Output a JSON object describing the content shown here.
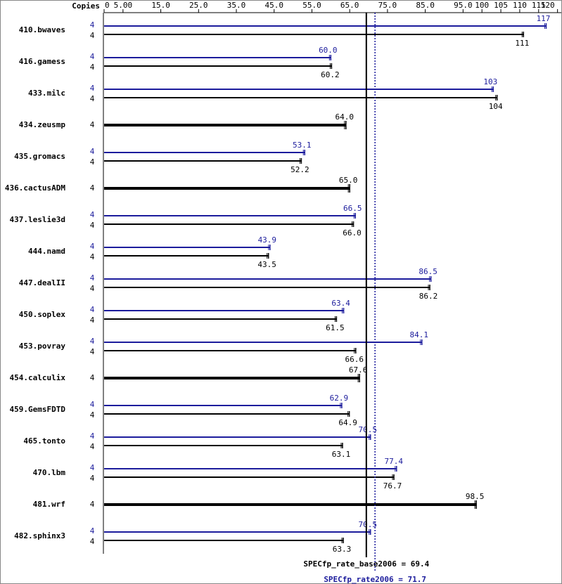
{
  "chart_data": {
    "type": "spec-bar",
    "copies_label": "Copies",
    "xlim": [
      0,
      121
    ],
    "xticks": [
      0,
      {
        "value": 5,
        "label": "5.00"
      },
      {
        "value": 15,
        "label": "15.0"
      },
      {
        "value": 25,
        "label": "25.0"
      },
      {
        "value": 35,
        "label": "35.0"
      },
      {
        "value": 45,
        "label": "45.0"
      },
      {
        "value": 55,
        "label": "55.0"
      },
      {
        "value": 65,
        "label": "65.0"
      },
      {
        "value": 75,
        "label": "75.0"
      },
      {
        "value": 85,
        "label": "85.0"
      },
      {
        "value": 95,
        "label": "95.0"
      },
      100,
      105,
      110,
      115,
      120
    ],
    "categories": [
      "410.bwaves",
      "416.gamess",
      "433.milc",
      "434.zeusmp",
      "435.gromacs",
      "436.cactusADM",
      "437.leslie3d",
      "444.namd",
      "447.dealII",
      "450.soplex",
      "453.povray",
      "454.calculix",
      "459.GemsFDTD",
      "465.tonto",
      "470.lbm",
      "481.wrf",
      "482.sphinx3"
    ],
    "series": [
      {
        "color": "#1c1c9c",
        "copies": [
          4,
          4,
          4,
          null,
          4,
          null,
          4,
          4,
          4,
          4,
          4,
          null,
          4,
          4,
          4,
          null,
          4
        ],
        "values": [
          117,
          60.0,
          103,
          null,
          53.1,
          null,
          66.5,
          43.9,
          86.5,
          63.4,
          84.1,
          null,
          62.9,
          70.5,
          77.4,
          null,
          70.5
        ],
        "value_labels": [
          "117",
          "60.0",
          "103",
          null,
          "53.1",
          null,
          "66.5",
          "43.9",
          "86.5",
          "63.4",
          "84.1",
          null,
          "62.9",
          "70.5",
          "77.4",
          null,
          "70.5"
        ]
      },
      {
        "color": "#000000",
        "copies": [
          4,
          4,
          4,
          4,
          4,
          4,
          4,
          4,
          4,
          4,
          4,
          4,
          4,
          4,
          4,
          4,
          4
        ],
        "values": [
          111,
          60.2,
          104,
          64.0,
          52.2,
          65.0,
          66.0,
          43.5,
          86.2,
          61.5,
          66.6,
          67.6,
          64.9,
          63.1,
          76.7,
          98.5,
          63.3
        ],
        "value_labels": [
          "111",
          "60.2",
          "104",
          "64.0",
          "52.2",
          "65.0",
          "66.0",
          "43.5",
          "86.2",
          "61.5",
          "66.6",
          "67.6",
          "64.9",
          "63.1",
          "76.7",
          "98.5",
          "63.3"
        ]
      }
    ],
    "reference_lines": [
      {
        "label": "SPECfp_rate_base2006 = 69.4",
        "value": 69.4,
        "color": "#000000",
        "style": "solid"
      },
      {
        "label": "SPECfp_rate2006 = 71.7",
        "value": 71.7,
        "color": "#1c1c9c",
        "style": "dotted"
      }
    ]
  }
}
